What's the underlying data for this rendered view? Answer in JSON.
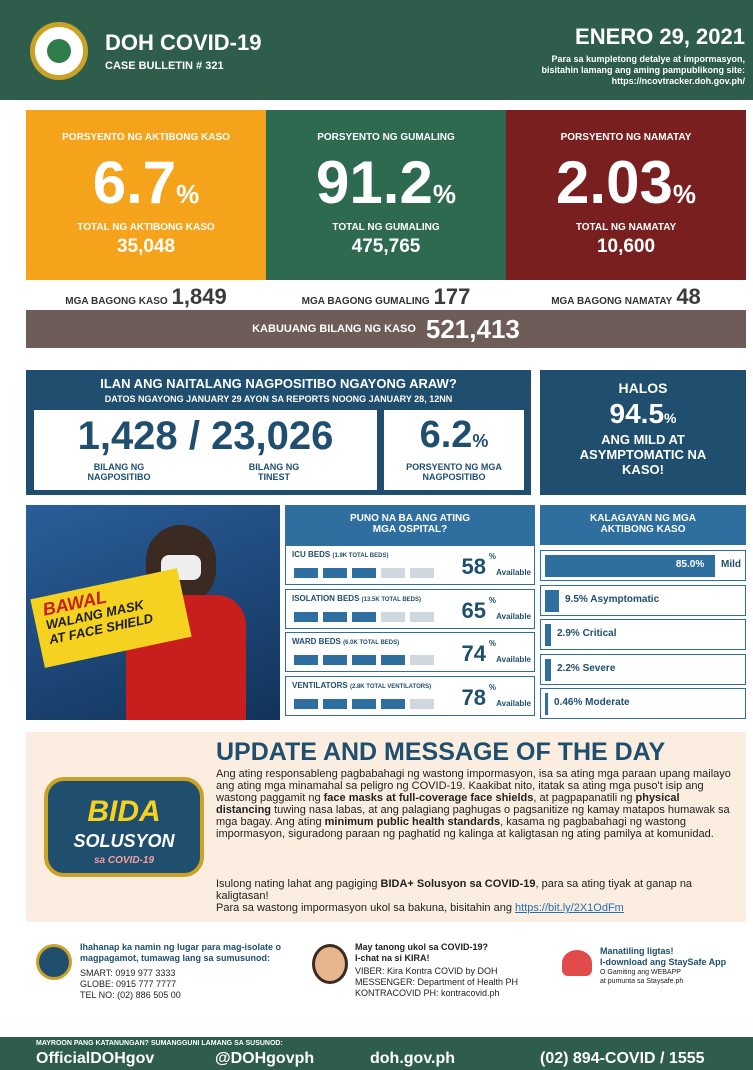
{
  "header": {
    "title": "DOH COVID-19",
    "subtitle": "CASE BULLETIN # 321",
    "date": "ENERO 29, 2021",
    "note": [
      "Para sa kumpletong detalye at impormasyon,",
      "bisitahin lamang ang aming pampublikong site:",
      "https://ncovtracker.doh.gov.ph/"
    ]
  },
  "stats": [
    {
      "label": "PORSYENTO NG AKTIBONG KASO",
      "percent": "6.7",
      "unit": "%",
      "total_label": "TOTAL NG AKTIBONG KASO",
      "total": "35,048",
      "new_label": "MGA BAGONG KASO",
      "new": "1,849"
    },
    {
      "label": "PORSYENTO NG GUMALING",
      "percent": "91.2",
      "unit": "%",
      "total_label": "TOTAL NG GUMALING",
      "total": "475,765",
      "new_label": "MGA BAGONG GUMALING",
      "new": "177"
    },
    {
      "label": "PORSYENTO NG NAMATAY",
      "percent": "2.03",
      "unit": "%",
      "total_label": "TOTAL NG NAMATAY",
      "total": "10,600",
      "new_label": "MGA BAGONG NAMATAY",
      "new": "48"
    }
  ],
  "total_cases": {
    "label": "KABUUANG BILANG NG KASO",
    "value": "521,413"
  },
  "positivity": {
    "title": "ILAN ANG NAITALANG NAGPOSITIBO NGAYONG ARAW?",
    "subtitle": "DATOS NGAYONG JANUARY 29 AYON SA REPORTS NOONG JANUARY 28, 12NN",
    "positive": "1,428",
    "separator": "/",
    "tested": "23,026",
    "positive_label": "BILANG NG NAGPOSITIBO",
    "tested_label": "BILANG NG TINEST",
    "rate": "6.2",
    "rate_unit": "%",
    "rate_label": "PORSYENTO NG MGA NAGPOSITIBO"
  },
  "mild": {
    "pre": "HALOS",
    "value": "94.5",
    "unit": "%",
    "text": "ANG MILD AT ASYMPTOMATIC NA KASO!"
  },
  "banner": {
    "lines": [
      "BAWAL",
      "WALANG MASK",
      "AT FACE SHIELD"
    ]
  },
  "hospital": {
    "title": "PUNO NA BA ANG ATING MGA OSPITAL?",
    "items": [
      {
        "name": "ICU BEDS",
        "detail": "(1.9K TOTAL BEDS)",
        "percent": "58",
        "unit": "%",
        "note": "Available"
      },
      {
        "name": "ISOLATION BEDS",
        "detail": "(13.5K TOTAL BEDS)",
        "percent": "65",
        "unit": "%",
        "note": "Available"
      },
      {
        "name": "WARD BEDS",
        "detail": "(6.0K TOTAL BEDS)",
        "percent": "74",
        "unit": "%",
        "note": "Available"
      },
      {
        "name": "VENTILATORS",
        "detail": "(2.8K TOTAL VENTILATORS)",
        "percent": "78",
        "unit": "%",
        "note": "Available"
      }
    ]
  },
  "active": {
    "title": "KALAGAYAN NG MGA AKTIBONG KASO",
    "items": [
      {
        "value": "85.0%",
        "label": "Mild"
      },
      {
        "value": "9.5%",
        "label": "Asymptomatic"
      },
      {
        "value": "2.9%",
        "label": "Critical"
      },
      {
        "value": "2.2%",
        "label": "Severe"
      },
      {
        "value": "0.46%",
        "label": "Moderate"
      }
    ]
  },
  "update": {
    "logo": [
      "BIDA",
      "SOLUSYON",
      "sa COVID-19"
    ],
    "title": "UPDATE AND MESSAGE OF THE DAY",
    "paragraphs": [
      [
        "Ang ating responsableng pagbabahagi ng wastong impormasyon, isa sa ating mga paraan upang mailayo ang ating mga minamahal sa peligro ng COVID-19. Kaakibat nito, itatak sa ating mga puso't isip ang wastong paggamit ng ",
        "face masks at full-coverage face shields",
        ", at pagpapanatili ng ",
        "physical distancing",
        " tuwing nasa labas, at ang palagiang paghugas o pagsanitize ng kamay matapos humawak sa mga bagay. Ang ating ",
        "minimum public health standards",
        ", kasama ng pagbabahagi ng wastong impormasyon, siguradong paraan ng paghatid ng kalinga at kaligtasan ng ating pamilya at komunidad."
      ],
      [
        "Isulong nating lahat ang pagiging ",
        "BIDA+ Solusyon sa COVID-19",
        ", para sa ating tiyak at ganap na kaligtasan!"
      ],
      [
        "Para sa wastong impormasyon ukol sa bakuna, bisitahin ang ",
        "https://bit.ly/2X1OdFm"
      ]
    ]
  },
  "contacts": [
    [
      "Ihahanap ka namin ng lugar para mag-isolate o magpagamot, tumawag lang sa sumusunod:",
      "SMART: 0919 977 3333",
      "GLOBE: 0915 777 7777",
      "TEL NO: (02) 886 505 00"
    ],
    [
      "May tanong ukol sa COVID-19?",
      "I-chat na si KIRA!",
      "VIBER: Kira Kontra COVID by DOH",
      "MESSENGER: Department of Health PH",
      "KONTRACOVID PH: kontracovid.ph"
    ],
    [
      "Manatiling ligtas!",
      "I-download ang StaySafe App",
      "O Gamiting ang WEBAPP",
      "at pumunta sa Staysafe.ph"
    ]
  ],
  "footer": {
    "note": "MAYROON PANG KATANUNGAN? SUMANGGUNI LAMANG SA SUSUNOD:",
    "links": [
      "OfficialDOHgov",
      "@DOHgovph",
      "doh.gov.ph",
      "(02) 894-COVID / 1555"
    ]
  }
}
